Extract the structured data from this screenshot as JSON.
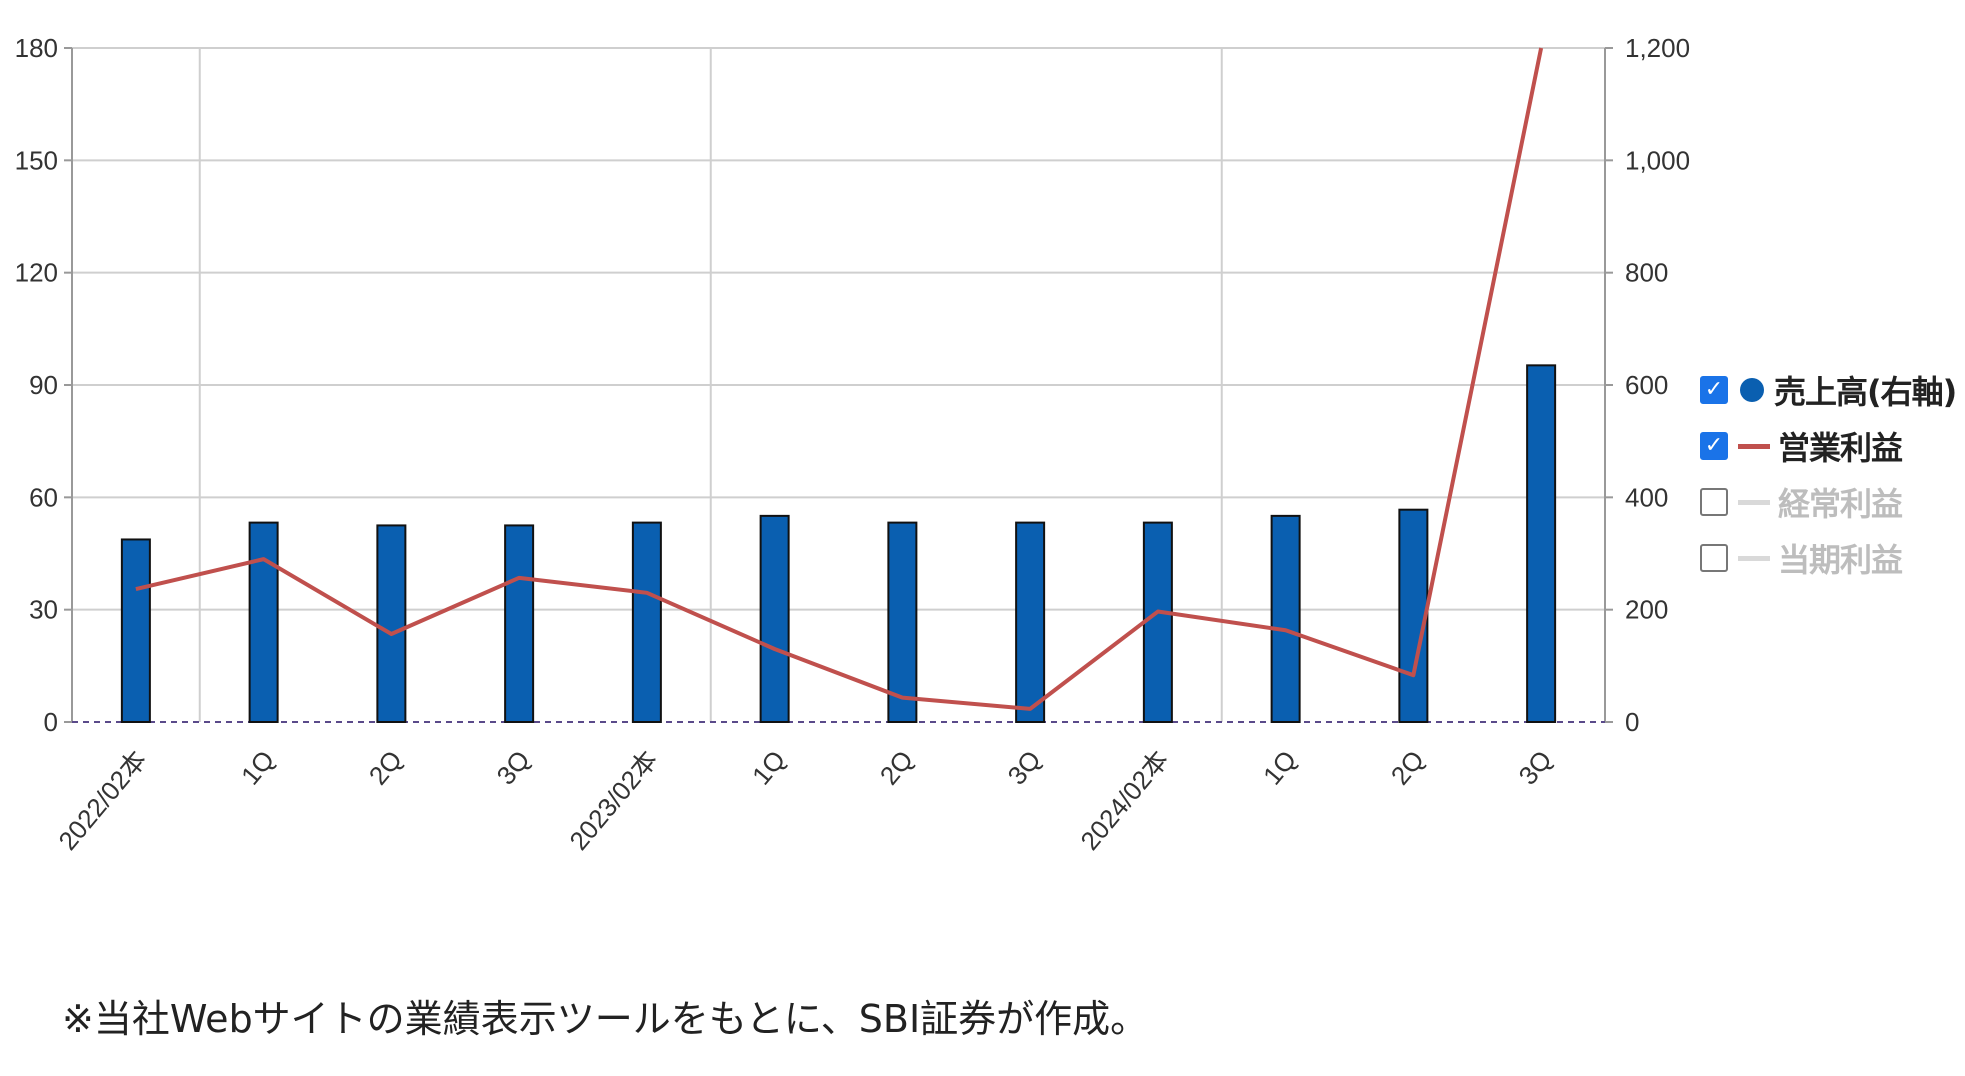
{
  "chart_data": {
    "type": "bar",
    "categories": [
      "2022/02本",
      "1Q",
      "2Q",
      "3Q",
      "2023/02本",
      "1Q",
      "2Q",
      "3Q",
      "2024/02本",
      "1Q",
      "2Q",
      "3Q"
    ],
    "series": [
      {
        "name": "売上高(右軸)",
        "kind": "bar",
        "axis": "right",
        "values": [
          325,
          355,
          350,
          350,
          355,
          367,
          355,
          355,
          355,
          367,
          378,
          635
        ],
        "color": "#0a5fb0"
      },
      {
        "name": "営業利益",
        "kind": "line",
        "axis": "left",
        "values": [
          35.5,
          43.5,
          23.5,
          38.5,
          34.5,
          19.5,
          6.5,
          3.5,
          29.5,
          24.5,
          12.5,
          180
        ],
        "color": "#c0504d"
      }
    ],
    "y_left": {
      "ticks": [
        "0",
        "30",
        "60",
        "90",
        "120",
        "150",
        "180"
      ],
      "ylim": [
        0,
        180
      ]
    },
    "y_right": {
      "ticks": [
        "0",
        "200",
        "400",
        "600",
        "800",
        "1,000",
        "1,200"
      ],
      "ylim": [
        0,
        1200
      ]
    },
    "grid": true,
    "legend": {
      "position": "right",
      "items": [
        {
          "label": "売上高(右軸)",
          "checked": true,
          "swatch": "dot",
          "color": "#0a5fb0"
        },
        {
          "label": "営業利益",
          "checked": true,
          "swatch": "line",
          "color": "#c0504d"
        },
        {
          "label": "経常利益",
          "checked": false,
          "swatch": "line",
          "color": "#d9d9d9"
        },
        {
          "label": "当期利益",
          "checked": false,
          "swatch": "line",
          "color": "#d9d9d9"
        }
      ]
    }
  },
  "caption": "※当社Webサイトの業績表示ツールをもとに、SBI証券が作成。"
}
